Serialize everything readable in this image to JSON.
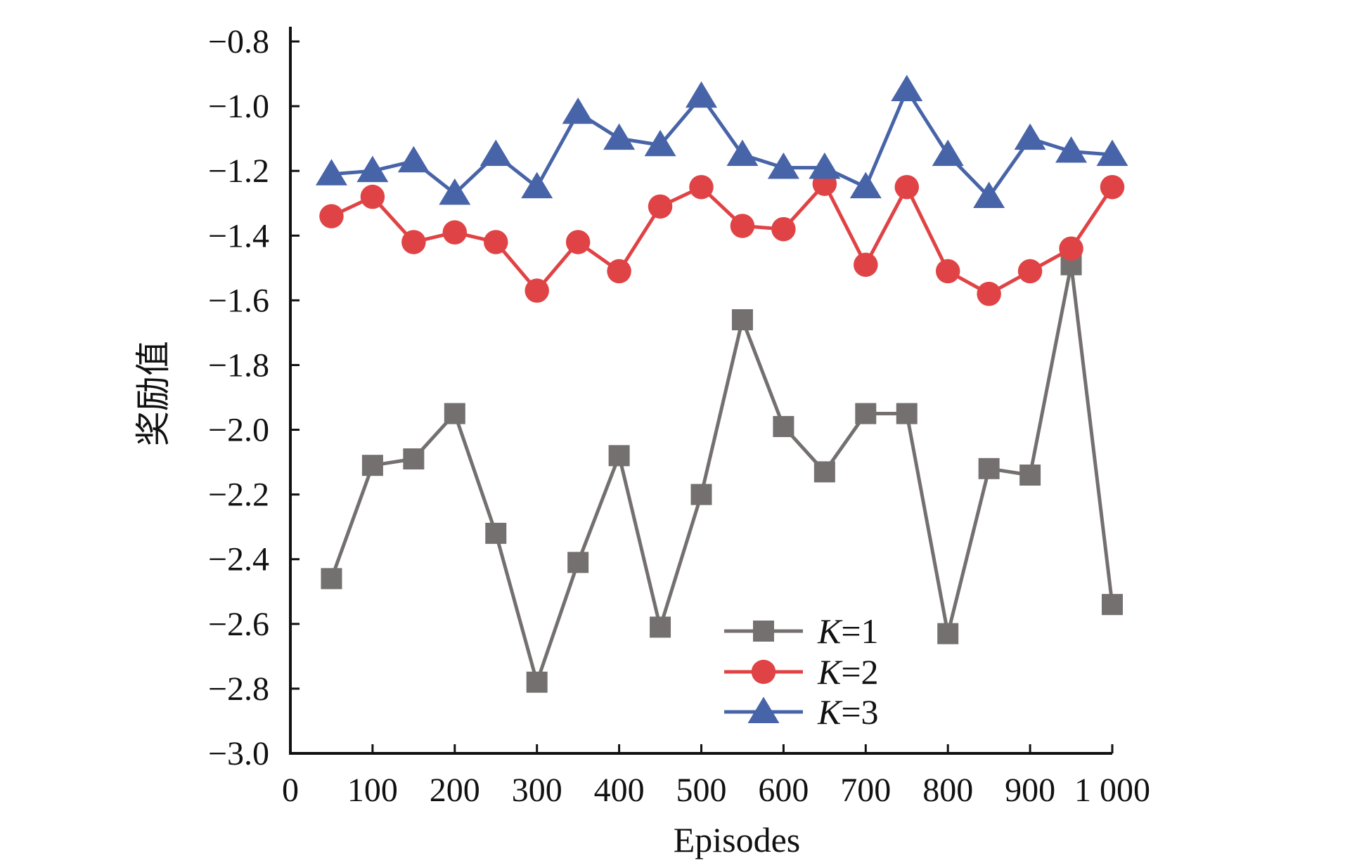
{
  "chart_data": {
    "type": "line",
    "xlabel": "Episodes",
    "ylabel": "奖励值",
    "xlim": [
      0,
      1000
    ],
    "ylim": [
      -3.0,
      -0.7
    ],
    "xticks": [
      0,
      100,
      200,
      300,
      400,
      500,
      600,
      700,
      800,
      900,
      1000
    ],
    "xtick_labels": [
      "0",
      "100",
      "200",
      "300",
      "400",
      "500",
      "600",
      "700",
      "800",
      "900",
      "1 000"
    ],
    "yticks": [
      -3.0,
      -2.8,
      -2.6,
      -2.4,
      -2.2,
      -2.0,
      -1.8,
      -1.6,
      -1.4,
      -1.2,
      -1.0,
      -0.8
    ],
    "ytick_labels": [
      "−3.0",
      "−2.8",
      "−2.6",
      "−2.4",
      "−2.2",
      "−2.0",
      "−1.8",
      "−1.6",
      "−1.4",
      "−1.2",
      "−1.0",
      "−0.8"
    ],
    "grid": false,
    "legend_position": "bottom-center",
    "x": [
      50,
      100,
      150,
      200,
      250,
      300,
      350,
      400,
      450,
      500,
      550,
      600,
      650,
      700,
      750,
      800,
      850,
      900,
      950,
      1000
    ],
    "series": [
      {
        "name": "K=1",
        "legend_italic": "K",
        "legend_rest": "=1",
        "marker": "square",
        "color": "#757070",
        "values": [
          -2.46,
          -2.11,
          -2.09,
          -1.95,
          -2.32,
          -2.78,
          -2.41,
          -2.08,
          -2.61,
          -2.2,
          -1.66,
          -1.99,
          -2.13,
          -1.95,
          -1.95,
          -2.63,
          -2.12,
          -2.14,
          -1.49,
          -2.54
        ]
      },
      {
        "name": "K=2",
        "legend_italic": "K",
        "legend_rest": "=2",
        "marker": "circle",
        "color": "#e04345",
        "values": [
          -1.34,
          -1.28,
          -1.42,
          -1.39,
          -1.42,
          -1.57,
          -1.42,
          -1.51,
          -1.31,
          -1.25,
          -1.37,
          -1.38,
          -1.24,
          -1.49,
          -1.25,
          -1.51,
          -1.58,
          -1.51,
          -1.44,
          -1.25
        ]
      },
      {
        "name": "K=3",
        "legend_italic": "K",
        "legend_rest": "=3",
        "marker": "triangle",
        "color": "#4864a8",
        "values": [
          -1.21,
          -1.2,
          -1.17,
          -1.27,
          -1.15,
          -1.25,
          -1.02,
          -1.1,
          -1.12,
          -0.97,
          -1.15,
          -1.19,
          -1.19,
          -1.25,
          -0.95,
          -1.15,
          -1.28,
          -1.1,
          -1.14,
          -1.15
        ]
      }
    ]
  }
}
